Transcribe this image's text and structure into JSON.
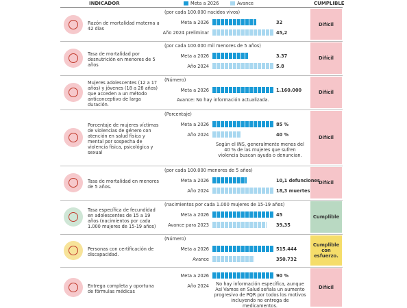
{
  "header": {
    "indicator": "INDICADOR",
    "status": "CUMPLIBLE",
    "legend": [
      {
        "name": "Meta a 2026",
        "color": "#1a9bd7"
      },
      {
        "name": "Avance",
        "color": "#a9d8f0"
      }
    ]
  },
  "rows": [
    {
      "indicator": "Razón de mortalidad materna a 42 días",
      "unit": "(por cada 100.000 nacidos vivos)",
      "status": "Difícil",
      "status_color": "#f6c5c9",
      "icon_color": "#f6c9cc",
      "items": [
        {
          "label": "Meta a 2026",
          "value": 32,
          "value_label": "32",
          "color": "#1a9bd7"
        },
        {
          "label": "Año 2024 preliminar",
          "value": 45.2,
          "value_label": "45,2",
          "color": "#a9d8f0"
        }
      ]
    },
    {
      "indicator": "Tasa de mortalidad por desnutrición en menores de 5 años",
      "unit": "(por cada 100.000 mil menores de 5 años)",
      "status": "Difícil",
      "status_color": "#f6c5c9",
      "icon_color": "#f6c9cc",
      "items": [
        {
          "label": "Meta a 2026",
          "value": 3.37,
          "value_label": "3.37",
          "color": "#1a9bd7"
        },
        {
          "label": "Año 2024",
          "value": 5.8,
          "value_label": "5.8",
          "color": "#a9d8f0"
        }
      ]
    },
    {
      "indicator": "Mujeres adolescentes (12 a 17 años) y jóvenes (18 a 28 años) que acceden a un método anticonceptivo de larga duración.",
      "unit": "(Número)",
      "status": "Difícil",
      "status_color": "#f6c5c9",
      "icon_color": "#f6c9cc",
      "items": [
        {
          "label": "Meta a 2026",
          "value": 1160000,
          "value_label": "1.160.000",
          "color": "#1a9bd7"
        }
      ],
      "note": "Avance: No hay información actualizada."
    },
    {
      "indicator": "Porcentaje de mujeres víctimas de violencias de género con atención en salud física y mental por sospecha de violencia física, psicológica y sexual",
      "unit": "(Porcentaje)",
      "status": "Difícil",
      "status_color": "#f6c5c9",
      "icon_color": "#f6c9cc",
      "items": [
        {
          "label": "Meta a 2026",
          "value": 85,
          "value_label": "85 %",
          "color": "#1a9bd7"
        },
        {
          "label": "Año 2024",
          "value": 40,
          "value_label": "40 %",
          "color": "#a9d8f0"
        }
      ],
      "note": "Según el INS, generalmente menos del 40 % de las mujeres que sufren violencia buscan ayuda o denuncian."
    },
    {
      "indicator": "Tasa de mortalidad en menores de 5 años.",
      "unit": "(por cada 100.000 menores de 5 años)",
      "status": "Difícil",
      "status_color": "#f6c5c9",
      "icon_color": "#f6c9cc",
      "items": [
        {
          "label": "Meta a 2026",
          "value": 10.1,
          "value_label": "10,1 defunciones",
          "color": "#1a9bd7"
        },
        {
          "label": "Año 2024",
          "value": 18.3,
          "value_label": "18,3 muertes",
          "color": "#a9d8f0"
        }
      ]
    },
    {
      "indicator": "Tasa específica de fecundidad en adolescentes de 15 a 19 años (nacimientos por cada 1.000 mujeres de 15-19 años)",
      "unit": "(nacimientos por cada 1.000 mujeres de 15-19 años)",
      "status": "Cumplible",
      "status_color": "#b9d9c2",
      "icon_color": "#cfe6d6",
      "items": [
        {
          "label": "Meta a 2026",
          "value": 45,
          "value_label": "45",
          "color": "#1a9bd7"
        },
        {
          "label": "Avance para 2023",
          "value": 39.35,
          "value_label": "39,35",
          "color": "#a9d8f0"
        }
      ]
    },
    {
      "indicator": "Personas con certificación de discapacidad.",
      "unit": "(Número)",
      "status": "Cumplible con esfuerzo.",
      "status_color": "#f5dd6a",
      "icon_color": "#f7e39a",
      "items": [
        {
          "label": "Meta a 2026",
          "value": 515444,
          "value_label": "515.444",
          "color": "#1a9bd7"
        },
        {
          "label": "Avance",
          "value": 350732,
          "value_label": "350.732",
          "color": "#a9d8f0"
        }
      ]
    },
    {
      "indicator": "Entrega completa y oportuna de fórmulas médicas",
      "status": "Difícil",
      "status_color": "#f6c5c9",
      "icon_color": "#f6c9cc",
      "items": [
        {
          "label": "Meta a 2026",
          "value": 90,
          "value_label": "90 %",
          "color": "#1a9bd7"
        },
        {
          "label": "Año 2024"
        }
      ],
      "note": "No hay información específica, aunque Así Vamos en Salud señala un aumento progresivo de PQR por todos los motivos incluyendo no entrega de medicamentos."
    }
  ]
}
